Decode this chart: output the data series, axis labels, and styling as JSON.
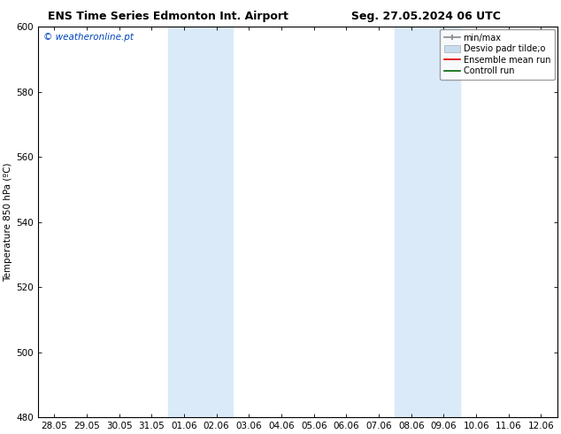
{
  "title_left": "ENS Time Series Edmonton Int. Airport",
  "title_right": "Seg. 27.05.2024 06 UTC",
  "ylabel": "Temperature 850 hPa (ºC)",
  "ylim_min": 480,
  "ylim_max": 600,
  "yticks": [
    480,
    500,
    520,
    540,
    560,
    580,
    600
  ],
  "xtick_labels": [
    "28.05",
    "29.05",
    "30.05",
    "31.05",
    "01.06",
    "02.06",
    "03.06",
    "04.06",
    "05.06",
    "06.06",
    "07.06",
    "08.06",
    "09.06",
    "10.06",
    "11.06",
    "12.06"
  ],
  "shaded_regions": [
    {
      "xmin": 4,
      "xmax": 6,
      "color": "#daeaf8"
    },
    {
      "xmin": 11,
      "xmax": 13,
      "color": "#daeaf8"
    }
  ],
  "watermark_text": "© weatheronline.pt",
  "watermark_color": "#0044bb",
  "bg_color": "#ffffff",
  "plot_bg_color": "#ffffff",
  "border_color": "#000000",
  "tick_color": "#000000",
  "font_size": 7.5,
  "title_font_size": 9,
  "legend_label_minmax": "min/max",
  "legend_label_desvio": "Desvio padr tilde;o",
  "legend_label_ens": "Ensemble mean run",
  "legend_label_ctrl": "Controll run",
  "legend_color_minmax": "#888888",
  "legend_color_desvio": "#c8dcf0",
  "legend_color_ens": "#dd0000",
  "legend_color_ctrl": "#006600"
}
